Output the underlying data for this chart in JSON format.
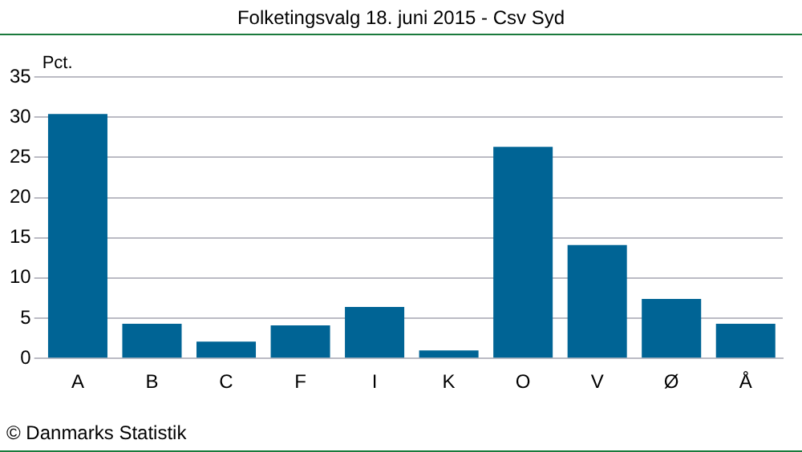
{
  "chart_data": {
    "type": "bar",
    "title": "Folketingsvalg 18. juni 2015 - Csv Syd",
    "ylabel": "Pct.",
    "annotations": [
      "© Danmarks Statistik"
    ],
    "categories": [
      "A",
      "B",
      "C",
      "F",
      "I",
      "K",
      "O",
      "V",
      "Ø",
      "Å"
    ],
    "values": [
      30.4,
      4.3,
      2.1,
      4.1,
      6.4,
      1.0,
      26.3,
      14.1,
      7.4,
      4.3
    ],
    "color": "#006495",
    "ylim": [
      0,
      35
    ],
    "yticks": [
      0,
      5,
      10,
      15,
      20,
      25,
      30,
      35
    ],
    "grid": "y",
    "legend": false
  }
}
